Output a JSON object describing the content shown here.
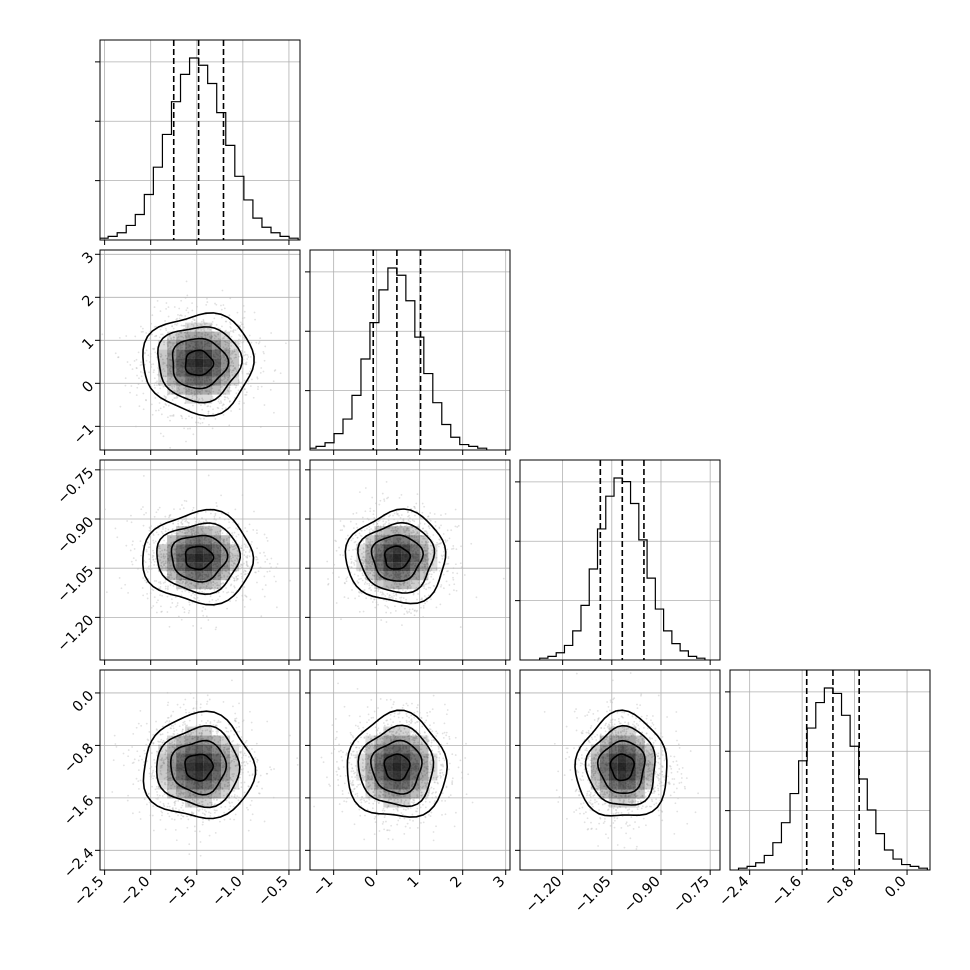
{
  "chart_data": {
    "type": "corner",
    "parameters": [
      {
        "index": 0,
        "mean": -1.48,
        "sigma": 0.3,
        "range": [
          -2.55,
          -0.38
        ],
        "ticks": [
          -2.5,
          -2.0,
          -1.5,
          -1.0,
          -0.5
        ],
        "tick_labels": [
          "−2.5",
          "−2.0",
          "−1.5",
          "−1.0",
          "−0.5"
        ],
        "quantiles": [
          -1.75,
          -1.48,
          -1.21
        ],
        "hist_bins": 22,
        "hist_counts": [
          0.01,
          0.02,
          0.04,
          0.08,
          0.14,
          0.25,
          0.4,
          0.58,
          0.76,
          0.91,
          1.0,
          0.96,
          0.86,
          0.7,
          0.52,
          0.35,
          0.22,
          0.12,
          0.07,
          0.04,
          0.02,
          0.01
        ]
      },
      {
        "index": 1,
        "mean": 0.47,
        "sigma": 0.58,
        "range": [
          -1.55,
          3.1
        ],
        "ticks": [
          -1,
          0,
          1,
          2,
          3
        ],
        "tick_labels": [
          "−1",
          "0",
          "1",
          "2",
          "3"
        ],
        "quantiles": [
          -0.08,
          0.47,
          1.02
        ],
        "hist_bins": 20,
        "hist_counts": [
          0.01,
          0.02,
          0.04,
          0.09,
          0.17,
          0.3,
          0.5,
          0.7,
          0.88,
          1.0,
          0.96,
          0.82,
          0.62,
          0.42,
          0.26,
          0.14,
          0.07,
          0.03,
          0.02,
          0.01
        ]
      },
      {
        "index": 2,
        "mean": -1.018,
        "sigma": 0.07,
        "range": [
          -1.33,
          -0.72
        ],
        "ticks": [
          -1.2,
          -1.05,
          -0.9,
          -0.75
        ],
        "tick_labels": [
          "−1.20",
          "−1.05",
          "−0.90",
          "−0.75"
        ],
        "quantiles": [
          -1.085,
          -1.018,
          -0.952
        ],
        "hist_bins": 20,
        "hist_counts": [
          0.01,
          0.02,
          0.04,
          0.08,
          0.16,
          0.3,
          0.5,
          0.72,
          0.9,
          1.0,
          0.98,
          0.86,
          0.66,
          0.45,
          0.28,
          0.16,
          0.09,
          0.05,
          0.02,
          0.01
        ]
      },
      {
        "index": 3,
        "mean": -1.13,
        "sigma": 0.4,
        "range": [
          -2.7,
          0.35
        ],
        "ticks": [
          -2.4,
          -1.6,
          -0.8,
          0.0
        ],
        "tick_labels": [
          "−2.4",
          "−1.6",
          "−0.8",
          "0.0"
        ],
        "quantiles": [
          -1.53,
          -1.13,
          -0.73
        ],
        "hist_bins": 22,
        "hist_counts": [
          0.01,
          0.02,
          0.04,
          0.08,
          0.15,
          0.26,
          0.42,
          0.6,
          0.78,
          0.92,
          1.0,
          0.97,
          0.85,
          0.68,
          0.5,
          0.33,
          0.2,
          0.11,
          0.06,
          0.03,
          0.02,
          0.01
        ]
      }
    ],
    "diagonal_y_ticks": 3,
    "contour_levels_sigma": [
      0.5,
      1.0,
      1.5,
      2.0
    ],
    "grid": true,
    "colors": {
      "points": "#bdbdbd",
      "density": "#000000",
      "lines": "#000000",
      "grid": "#b0b0b0"
    }
  }
}
